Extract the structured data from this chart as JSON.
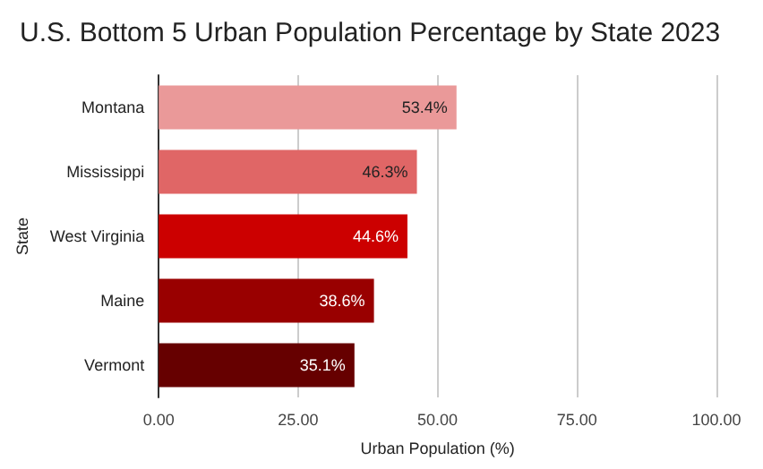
{
  "chart_data": {
    "type": "bar",
    "orientation": "horizontal",
    "title": "U.S. Bottom 5 Urban Population Percentage by State 2023",
    "xlabel": "Urban Population (%)",
    "ylabel": "State",
    "categories": [
      "Montana",
      "Mississippi",
      "West Virginia",
      "Maine",
      "Vermont"
    ],
    "values": [
      53.4,
      46.3,
      44.6,
      38.6,
      35.1
    ],
    "value_labels": [
      "53.4%",
      "46.3%",
      "44.6%",
      "38.6%",
      "35.1%"
    ],
    "colors": [
      "#ea9999",
      "#e06666",
      "#cc0000",
      "#990000",
      "#660000"
    ],
    "xlim": [
      0,
      100
    ],
    "xticks": [
      {
        "value": 0,
        "label": "0.00"
      },
      {
        "value": 25,
        "label": "25.00"
      },
      {
        "value": 50,
        "label": "50.00"
      },
      {
        "value": 75,
        "label": "75.00"
      },
      {
        "value": 100,
        "label": "100.00"
      }
    ],
    "grid": "x"
  }
}
